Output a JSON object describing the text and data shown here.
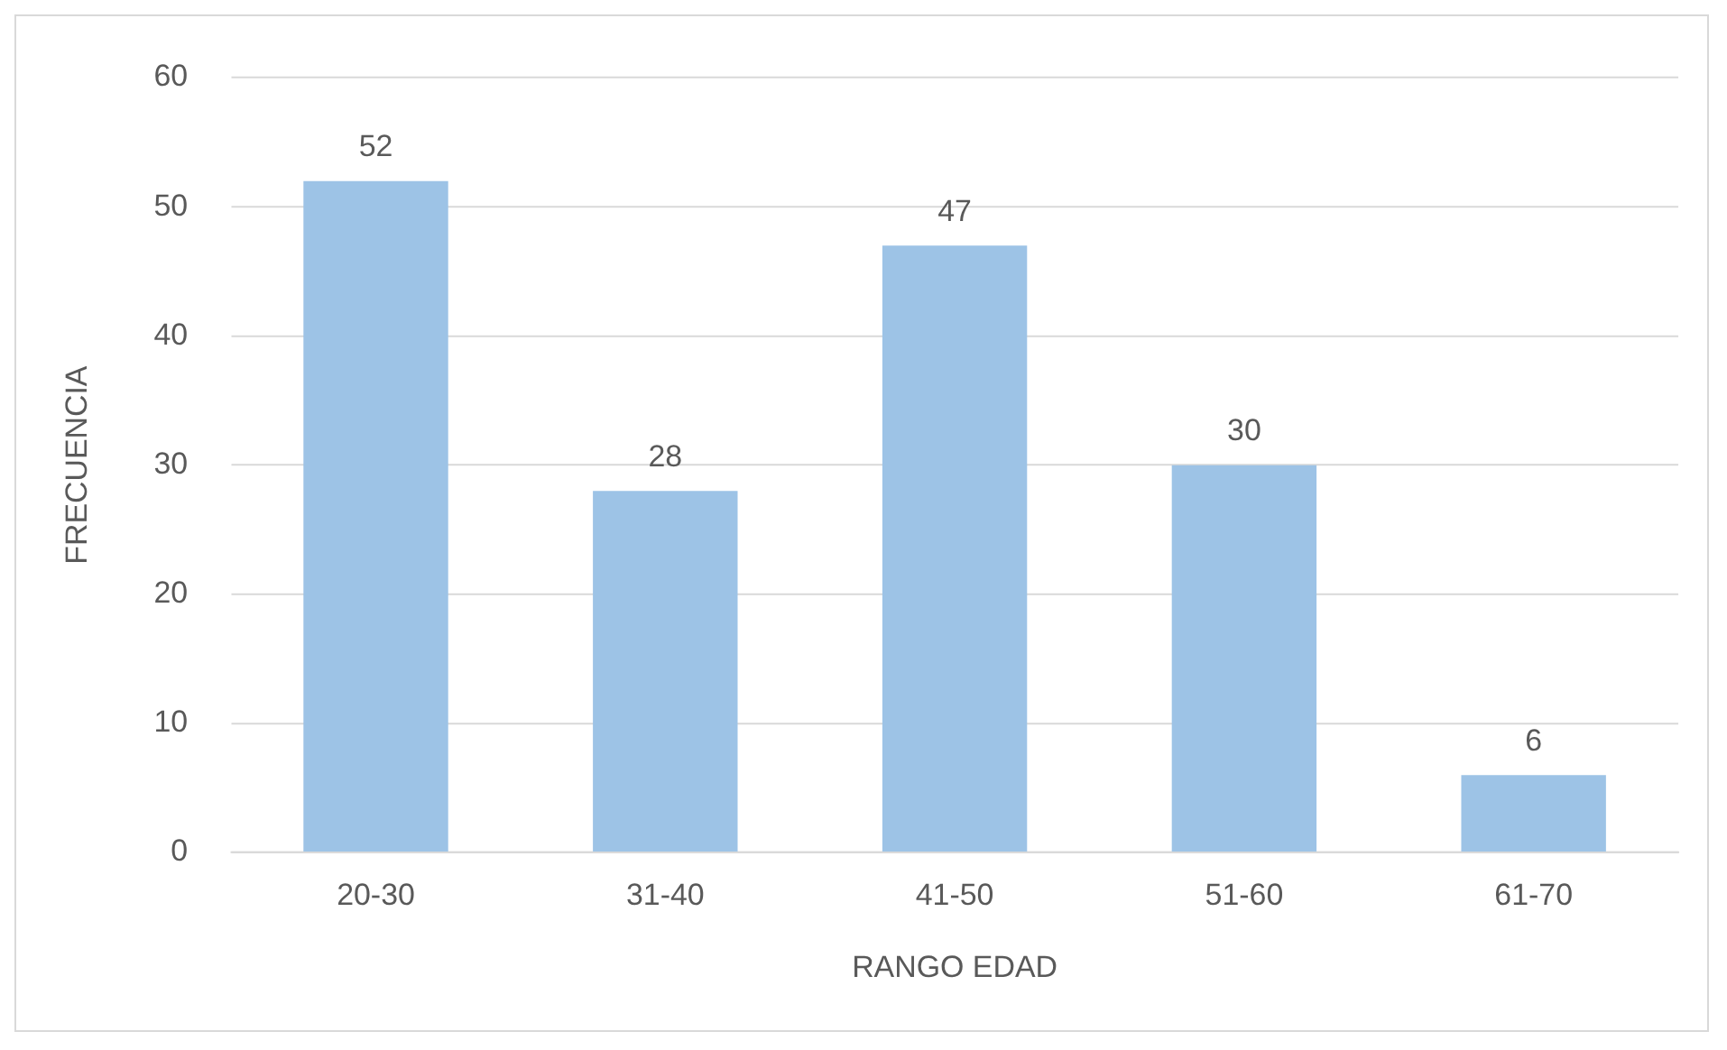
{
  "chart_data": {
    "type": "bar",
    "xlabel": "RANGO EDAD",
    "ylabel": "FRECUENCIA",
    "categories": [
      "20-30",
      "31-40",
      "41-50",
      "51-60",
      "61-70"
    ],
    "values": [
      52,
      28,
      47,
      30,
      6
    ],
    "color": "#9dc3e6",
    "ylim": [
      0,
      60
    ],
    "yticks": [
      0,
      10,
      20,
      30,
      40,
      50,
      60
    ],
    "grid": "y",
    "data_labels": true,
    "legend": false
  }
}
